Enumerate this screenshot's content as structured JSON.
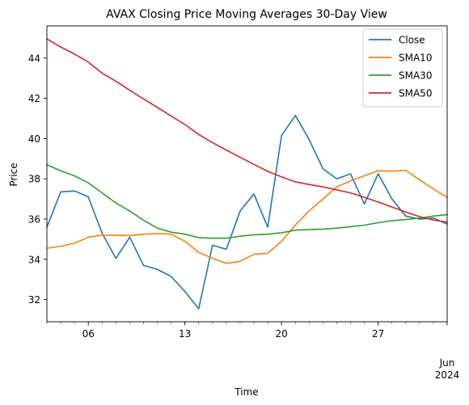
{
  "chart_data": {
    "type": "line",
    "title": "AVAX Closing Price Moving Averages 30-Day View",
    "xlabel": "Time",
    "ylabel": "Price",
    "x_start": "2024-05-03",
    "x_end": "2024-06-01",
    "xlim": [
      3,
      32
    ],
    "ylim": [
      30.9,
      45.6
    ],
    "grid": false,
    "legend_position": "top-right",
    "x_ticks": [
      {
        "day": 6,
        "label": "06"
      },
      {
        "day": 13,
        "label": "13"
      },
      {
        "day": 20,
        "label": "20"
      },
      {
        "day": 27,
        "label": "27"
      },
      {
        "day": 32,
        "label": "Jun",
        "sublabel": "2024"
      }
    ],
    "y_ticks": [
      {
        "value": 32,
        "label": "32"
      },
      {
        "value": 34,
        "label": "34"
      },
      {
        "value": 36,
        "label": "36"
      },
      {
        "value": 38,
        "label": "38"
      },
      {
        "value": 40,
        "label": "40"
      },
      {
        "value": 42,
        "label": "42"
      },
      {
        "value": 44,
        "label": "44"
      }
    ],
    "x": [
      3,
      4,
      5,
      6,
      7,
      8,
      9,
      10,
      11,
      12,
      13,
      14,
      15,
      16,
      17,
      18,
      19,
      20,
      21,
      22,
      23,
      24,
      25,
      26,
      27,
      28,
      29,
      30,
      31,
      32
    ],
    "series": [
      {
        "name": "Close",
        "color": "#1f77b4",
        "values": [
          35.6,
          37.35,
          37.4,
          37.1,
          35.3,
          34.05,
          35.1,
          33.7,
          33.5,
          33.15,
          32.4,
          31.55,
          34.7,
          34.5,
          36.4,
          37.25,
          35.6,
          40.15,
          41.15,
          39.95,
          38.5,
          38.0,
          38.25,
          36.75,
          38.25,
          37.0,
          36.15,
          36.0,
          36.05,
          35.75
        ]
      },
      {
        "name": "SMA10",
        "color": "#ff7f0e",
        "values": [
          34.55,
          34.65,
          34.8,
          35.1,
          35.2,
          35.2,
          35.18,
          35.25,
          35.28,
          35.25,
          34.9,
          34.35,
          34.05,
          33.8,
          33.9,
          34.25,
          34.3,
          34.9,
          35.7,
          36.4,
          37.0,
          37.6,
          37.9,
          38.15,
          38.4,
          38.38,
          38.42,
          37.95,
          37.5,
          37.08
        ]
      },
      {
        "name": "SMA30",
        "color": "#2ca02c",
        "values": [
          38.7,
          38.4,
          38.15,
          37.8,
          37.3,
          36.8,
          36.4,
          35.95,
          35.55,
          35.35,
          35.25,
          35.08,
          35.05,
          35.05,
          35.15,
          35.22,
          35.25,
          35.32,
          35.45,
          35.48,
          35.5,
          35.55,
          35.62,
          35.7,
          35.82,
          35.92,
          35.98,
          36.05,
          36.15,
          36.22
        ]
      },
      {
        "name": "SMA50",
        "color": "#d62728",
        "values": [
          44.95,
          44.55,
          44.2,
          43.8,
          43.25,
          42.85,
          42.4,
          41.97,
          41.55,
          41.12,
          40.7,
          40.2,
          39.8,
          39.43,
          39.07,
          38.72,
          38.37,
          38.1,
          37.85,
          37.72,
          37.6,
          37.45,
          37.3,
          37.08,
          36.85,
          36.6,
          36.35,
          36.12,
          35.95,
          35.85
        ]
      }
    ]
  }
}
